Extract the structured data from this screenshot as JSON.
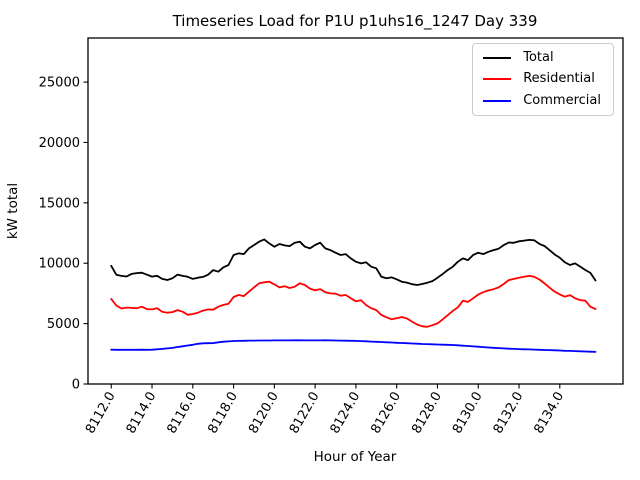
{
  "chart_data": {
    "type": "line",
    "title": "Timeseries Load for P1U p1uhs16_1247  Day 339",
    "xlabel": "Hour of Year",
    "ylabel": "kW total",
    "grid": false,
    "legend_position": "upper right",
    "xlim": [
      8110.86,
      8137.1
    ],
    "ylim": [
      0,
      28650
    ],
    "x_start": 8112.0,
    "x_step": 0.25,
    "x_ticks": [
      {
        "value": 8112,
        "label": "8112.0"
      },
      {
        "value": 8114,
        "label": "8114.0"
      },
      {
        "value": 8116,
        "label": "8116.0"
      },
      {
        "value": 8118,
        "label": "8118.0"
      },
      {
        "value": 8120,
        "label": "8120.0"
      },
      {
        "value": 8122,
        "label": "8122.0"
      },
      {
        "value": 8124,
        "label": "8124.0"
      },
      {
        "value": 8126,
        "label": "8126.0"
      },
      {
        "value": 8128,
        "label": "8128.0"
      },
      {
        "value": 8130,
        "label": "8130.0"
      },
      {
        "value": 8132,
        "label": "8132.0"
      },
      {
        "value": 8134,
        "label": "8134.0"
      }
    ],
    "y_ticks": [
      {
        "value": 0,
        "label": "0"
      },
      {
        "value": 5000,
        "label": "5000"
      },
      {
        "value": 10000,
        "label": "10000"
      },
      {
        "value": 15000,
        "label": "15000"
      },
      {
        "value": 20000,
        "label": "20000"
      },
      {
        "value": 25000,
        "label": "25000"
      }
    ],
    "series": [
      {
        "name": "Total",
        "color": "#000000",
        "values": [
          9790,
          9050,
          8950,
          8900,
          9120,
          9180,
          9220,
          9050,
          8890,
          8960,
          8700,
          8610,
          8750,
          9060,
          8950,
          8880,
          8700,
          8800,
          8870,
          9050,
          9430,
          9300,
          9660,
          9850,
          10680,
          10820,
          10760,
          11230,
          11500,
          11780,
          11970,
          11640,
          11370,
          11590,
          11480,
          11420,
          11700,
          11780,
          11370,
          11230,
          11510,
          11700,
          11230,
          11090,
          10870,
          10680,
          10760,
          10400,
          10130,
          9990,
          10080,
          9710,
          9580,
          8880,
          8750,
          8830,
          8670,
          8470,
          8400,
          8260,
          8200,
          8280,
          8390,
          8520,
          8800,
          9100,
          9440,
          9710,
          10130,
          10400,
          10260,
          10680,
          10870,
          10760,
          10950,
          11090,
          11200,
          11500,
          11720,
          11690,
          11820,
          11870,
          11930,
          11900,
          11600,
          11430,
          11080,
          10720,
          10450,
          10080,
          9850,
          9990,
          9720,
          9440,
          9200,
          8570
        ]
      },
      {
        "name": "Residential",
        "color": "#ff0000",
        "values": [
          7050,
          6500,
          6250,
          6330,
          6300,
          6270,
          6400,
          6200,
          6180,
          6280,
          5990,
          5900,
          5950,
          6120,
          5990,
          5730,
          5800,
          5900,
          6080,
          6180,
          6150,
          6400,
          6550,
          6650,
          7200,
          7370,
          7280,
          7640,
          8000,
          8340,
          8420,
          8470,
          8250,
          8000,
          8100,
          7950,
          8050,
          8340,
          8200,
          7900,
          7750,
          7860,
          7600,
          7500,
          7480,
          7310,
          7370,
          7100,
          6850,
          6940,
          6540,
          6280,
          6120,
          5710,
          5520,
          5360,
          5450,
          5550,
          5420,
          5170,
          4930,
          4780,
          4740,
          4870,
          5020,
          5350,
          5700,
          6050,
          6350,
          6900,
          6800,
          7100,
          7400,
          7600,
          7750,
          7850,
          8000,
          8280,
          8600,
          8700,
          8800,
          8880,
          8950,
          8880,
          8650,
          8330,
          7970,
          7650,
          7420,
          7230,
          7360,
          7100,
          6950,
          6900,
          6400,
          6200
        ]
      },
      {
        "name": "Commercial",
        "color": "#0000ff",
        "values": [
          2840,
          2835,
          2830,
          2830,
          2830,
          2835,
          2840,
          2835,
          2840,
          2870,
          2910,
          2950,
          2990,
          3060,
          3120,
          3190,
          3250,
          3330,
          3370,
          3380,
          3390,
          3450,
          3500,
          3530,
          3560,
          3570,
          3580,
          3590,
          3595,
          3600,
          3605,
          3605,
          3610,
          3610,
          3610,
          3610,
          3615,
          3615,
          3610,
          3610,
          3610,
          3610,
          3615,
          3610,
          3605,
          3595,
          3585,
          3575,
          3565,
          3550,
          3535,
          3515,
          3495,
          3475,
          3455,
          3435,
          3415,
          3395,
          3375,
          3355,
          3335,
          3315,
          3300,
          3285,
          3270,
          3255,
          3245,
          3230,
          3205,
          3175,
          3145,
          3115,
          3085,
          3055,
          3025,
          3000,
          2975,
          2950,
          2925,
          2905,
          2890,
          2875,
          2862,
          2848,
          2833,
          2818,
          2803,
          2788,
          2770,
          2752,
          2737,
          2722,
          2707,
          2692,
          2677,
          2662
        ]
      }
    ]
  }
}
